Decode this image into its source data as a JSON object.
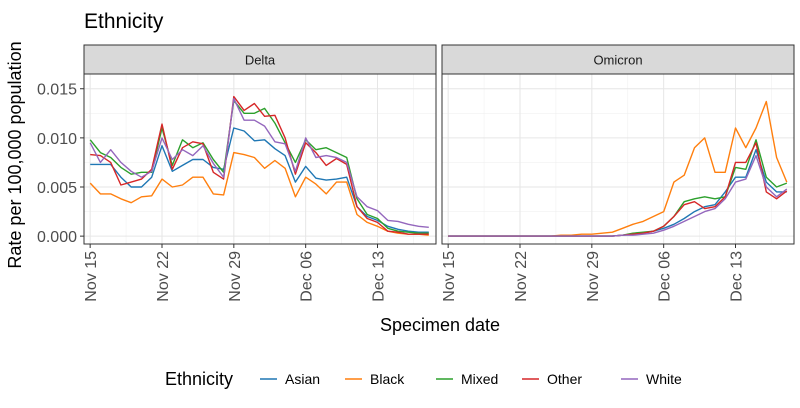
{
  "chart_data": {
    "type": "line",
    "title": "Ethnicity",
    "xlabel": "Specimen date",
    "ylabel": "Rate per 100,000 population",
    "ylim": [
      -0.0008,
      0.0165
    ],
    "y_ticks": [
      0.0,
      0.005,
      0.01,
      0.015
    ],
    "y_tick_labels": [
      "0.000",
      "0.005",
      "0.010",
      "0.015"
    ],
    "x_ticks": [
      0,
      7,
      14,
      21,
      28
    ],
    "x_tick_labels": [
      "Nov 15",
      "Nov 22",
      "Nov 29",
      "Dec 06",
      "Dec 13"
    ],
    "xlim": [
      -0.6,
      33.7
    ],
    "grid": true,
    "legend": {
      "title": "Ethnicity",
      "position": "bottom"
    },
    "x_day_offsets": [
      0,
      1,
      2,
      3,
      4,
      5,
      6,
      7,
      8,
      9,
      10,
      11,
      12,
      13,
      14,
      15,
      16,
      17,
      18,
      19,
      20,
      21,
      22,
      23,
      24,
      25,
      26,
      27,
      28,
      29,
      30,
      31,
      32,
      33
    ],
    "panels": [
      {
        "label": "Delta",
        "series": [
          {
            "name": "Asian",
            "color": "#1f77b4",
            "values": [
              0.0073,
              0.0073,
              0.0073,
              0.006,
              0.005,
              0.005,
              0.006,
              0.0092,
              0.0066,
              0.0072,
              0.0078,
              0.0078,
              0.007,
              0.0068,
              0.011,
              0.0107,
              0.0097,
              0.0098,
              0.0089,
              0.0082,
              0.0055,
              0.0071,
              0.0059,
              0.0057,
              0.0058,
              0.006,
              0.003,
              0.002,
              0.0016,
              0.001,
              0.0007,
              0.0005,
              0.0004,
              0.0004
            ]
          },
          {
            "name": "Black",
            "color": "#ff7f0e",
            "values": [
              0.0054,
              0.0043,
              0.0043,
              0.0038,
              0.0034,
              0.004,
              0.0041,
              0.0058,
              0.005,
              0.0052,
              0.006,
              0.006,
              0.0043,
              0.0042,
              0.0085,
              0.0083,
              0.008,
              0.0069,
              0.0077,
              0.0069,
              0.004,
              0.006,
              0.0053,
              0.0043,
              0.0055,
              0.0055,
              0.0022,
              0.0014,
              0.001,
              0.0005,
              0.0003,
              0.0002,
              0.0002,
              0.0001
            ]
          },
          {
            "name": "Mixed",
            "color": "#2ca02c",
            "values": [
              0.0098,
              0.0085,
              0.008,
              0.007,
              0.0063,
              0.0065,
              0.0065,
              0.011,
              0.0072,
              0.0098,
              0.009,
              0.0095,
              0.0078,
              0.0065,
              0.0138,
              0.0125,
              0.0125,
              0.013,
              0.0115,
              0.0095,
              0.0075,
              0.0098,
              0.0088,
              0.009,
              0.0085,
              0.008,
              0.0038,
              0.0022,
              0.0018,
              0.0008,
              0.0005,
              0.0004,
              0.0003,
              0.0003
            ]
          },
          {
            "name": "Other",
            "color": "#d62728",
            "values": [
              0.0083,
              0.0082,
              0.0075,
              0.0052,
              0.0055,
              0.0058,
              0.0068,
              0.0114,
              0.0068,
              0.009,
              0.0096,
              0.0094,
              0.0065,
              0.0058,
              0.0142,
              0.0128,
              0.0135,
              0.0122,
              0.0123,
              0.01,
              0.0063,
              0.0095,
              0.0085,
              0.0072,
              0.0079,
              0.0073,
              0.003,
              0.0018,
              0.0014,
              0.0005,
              0.0004,
              0.0002,
              0.0002,
              0.0002
            ]
          },
          {
            "name": "White",
            "color": "#9467bd",
            "values": [
              0.0095,
              0.0075,
              0.0088,
              0.0075,
              0.0066,
              0.006,
              0.0066,
              0.01,
              0.0078,
              0.0088,
              0.0082,
              0.0092,
              0.0074,
              0.006,
              0.014,
              0.0118,
              0.0118,
              0.0112,
              0.0096,
              0.0094,
              0.0066,
              0.01,
              0.008,
              0.0082,
              0.008,
              0.0075,
              0.004,
              0.003,
              0.0026,
              0.0016,
              0.0015,
              0.0012,
              0.001,
              0.0009
            ]
          }
        ]
      },
      {
        "label": "Omicron",
        "series": [
          {
            "name": "Asian",
            "color": "#1f77b4",
            "values": [
              0,
              0,
              0,
              0,
              0,
              0,
              0,
              0,
              0,
              0,
              0,
              0,
              0,
              0,
              0,
              0,
              0,
              0.0001,
              0.0002,
              0.0003,
              0.0005,
              0.0008,
              0.0012,
              0.0018,
              0.0025,
              0.003,
              0.0032,
              0.0045,
              0.006,
              0.006,
              0.0088,
              0.0055,
              0.0045,
              0.0045
            ]
          },
          {
            "name": "Black",
            "color": "#ff7f0e",
            "values": [
              0,
              0,
              0,
              0,
              0,
              0,
              0,
              0,
              0,
              0,
              0,
              0.0001,
              0.0001,
              0.0002,
              0.0002,
              0.0003,
              0.0004,
              0.0008,
              0.0012,
              0.0015,
              0.002,
              0.0025,
              0.0055,
              0.0062,
              0.009,
              0.01,
              0.0065,
              0.0065,
              0.011,
              0.009,
              0.011,
              0.0137,
              0.008,
              0.0055
            ]
          },
          {
            "name": "Mixed",
            "color": "#2ca02c",
            "values": [
              0,
              0,
              0,
              0,
              0,
              0,
              0,
              0,
              0,
              0,
              0,
              0,
              0,
              0,
              0,
              0,
              0,
              0.0001,
              0.0003,
              0.0004,
              0.0005,
              0.001,
              0.002,
              0.0035,
              0.0038,
              0.004,
              0.0038,
              0.004,
              0.007,
              0.0068,
              0.0098,
              0.006,
              0.005,
              0.0054
            ]
          },
          {
            "name": "Other",
            "color": "#d62728",
            "values": [
              0,
              0,
              0,
              0,
              0,
              0,
              0,
              0,
              0,
              0,
              0,
              0,
              0,
              0,
              0,
              0,
              0,
              0.0001,
              0.0002,
              0.0003,
              0.0005,
              0.001,
              0.002,
              0.0032,
              0.0035,
              0.0028,
              0.003,
              0.004,
              0.0075,
              0.0075,
              0.0095,
              0.0045,
              0.0038,
              0.0046
            ]
          },
          {
            "name": "White",
            "color": "#9467bd",
            "values": [
              0,
              0,
              0,
              0,
              0,
              0,
              0,
              0,
              0,
              0,
              0,
              0,
              0,
              0,
              0,
              0,
              0,
              0.0001,
              0.0001,
              0.0002,
              0.0003,
              0.0006,
              0.001,
              0.0015,
              0.002,
              0.0025,
              0.0028,
              0.0038,
              0.0055,
              0.0058,
              0.0082,
              0.005,
              0.004,
              0.0048
            ]
          }
        ]
      }
    ]
  }
}
